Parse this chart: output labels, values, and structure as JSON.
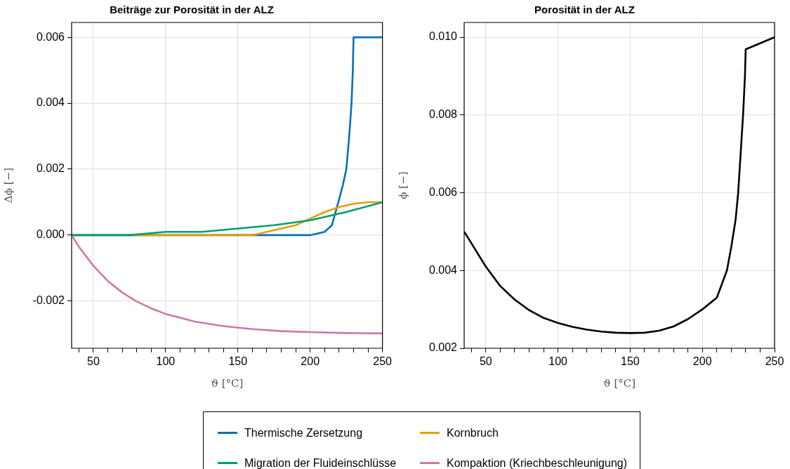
{
  "chart_data": [
    {
      "type": "line",
      "title": "Beiträge zur Porosität in der ALZ",
      "xlabel": "ϑ [°C]",
      "ylabel": "Δϕ [−]",
      "xlim": [
        35,
        250
      ],
      "xticks": [
        {
          "value": 40,
          "label": null
        },
        50,
        {
          "value": 60,
          "label": null
        },
        {
          "value": 70,
          "label": null
        },
        {
          "value": 80,
          "label": null
        },
        {
          "value": 90,
          "label": null
        },
        100,
        {
          "value": 110,
          "label": null
        },
        {
          "value": 120,
          "label": null
        },
        {
          "value": 130,
          "label": null
        },
        {
          "value": 140,
          "label": null
        },
        150,
        {
          "value": 160,
          "label": null
        },
        {
          "value": 170,
          "label": null
        },
        {
          "value": 180,
          "label": null
        },
        {
          "value": 190,
          "label": null
        },
        200,
        {
          "value": 210,
          "label": null
        },
        {
          "value": 220,
          "label": null
        },
        {
          "value": 230,
          "label": null
        },
        {
          "value": 240,
          "label": null
        },
        250
      ],
      "ylim": [
        -0.00343,
        0.00645
      ],
      "yticks": [
        {
          "value": -0.002,
          "label": "-0.002"
        },
        {
          "value": 0,
          "label": "0.000"
        },
        {
          "value": 0.002,
          "label": "0.002"
        },
        {
          "value": 0.004,
          "label": "0.004"
        },
        {
          "value": 0.006,
          "label": "0.006"
        }
      ],
      "grid": true,
      "legend": "bottom",
      "line_style": "solid",
      "marker": "none",
      "series": [
        {
          "name": "Thermische Zersetzung",
          "color": "#0072b2",
          "x": [
            35,
            100,
            150,
            200,
            210,
            215,
            219.5,
            222.5,
            225,
            227,
            228.6,
            229.5,
            230,
            250
          ],
          "values": [
            0,
            0,
            0,
            0,
            0.0001,
            0.0003,
            0.001,
            0.0015,
            0.002,
            0.003,
            0.004,
            0.005,
            0.006,
            0.006
          ]
        },
        {
          "name": "Kornbruch",
          "color": "#e69f00",
          "x": [
            35,
            100,
            150,
            160,
            170,
            180,
            190,
            200,
            210,
            220,
            230,
            240,
            250
          ],
          "values": [
            0,
            0,
            0,
            0,
            0.0001,
            0.0002,
            0.0003,
            0.0005,
            0.0007,
            0.00085,
            0.00095,
            0.001,
            0.001
          ]
        },
        {
          "name": "Migration der Fluideinschlüsse",
          "color": "#009e73",
          "x": [
            35,
            50,
            75,
            100,
            125,
            150,
            175,
            200,
            225,
            250
          ],
          "values": [
            0,
            0,
            0,
            0.0001,
            0.0001,
            0.0002,
            0.0003,
            0.00045,
            0.0007,
            0.001
          ]
        },
        {
          "name": "Kompaktion (Kriechbeschleunigung)",
          "color": "#cc79a7",
          "x": [
            35,
            40,
            50,
            60,
            70,
            80,
            90,
            100,
            120,
            140,
            160,
            180,
            200,
            225,
            250
          ],
          "values": [
            0,
            -0.00035,
            -0.00093,
            -0.00139,
            -0.00174,
            -0.00201,
            -0.00222,
            -0.00239,
            -0.00262,
            -0.00276,
            -0.00285,
            -0.00291,
            -0.00294,
            -0.00297,
            -0.00298
          ]
        }
      ]
    },
    {
      "type": "line",
      "title": "Porosität in der ALZ",
      "xlabel": "ϑ [°C]",
      "ylabel": "ϕ [−]",
      "xlim": [
        35,
        250
      ],
      "xticks": [
        {
          "value": 40,
          "label": null
        },
        50,
        {
          "value": 60,
          "label": null
        },
        {
          "value": 70,
          "label": null
        },
        {
          "value": 80,
          "label": null
        },
        {
          "value": 90,
          "label": null
        },
        100,
        {
          "value": 110,
          "label": null
        },
        {
          "value": 120,
          "label": null
        },
        {
          "value": 130,
          "label": null
        },
        {
          "value": 140,
          "label": null
        },
        150,
        {
          "value": 160,
          "label": null
        },
        {
          "value": 170,
          "label": null
        },
        {
          "value": 180,
          "label": null
        },
        {
          "value": 190,
          "label": null
        },
        200,
        {
          "value": 210,
          "label": null
        },
        {
          "value": 220,
          "label": null
        },
        {
          "value": 230,
          "label": null
        },
        {
          "value": 240,
          "label": null
        },
        250
      ],
      "ylim": [
        0.002,
        0.01038
      ],
      "yticks": [
        {
          "value": 0.002,
          "label": "0.002"
        },
        {
          "value": 0.004,
          "label": "0.004"
        },
        {
          "value": 0.006,
          "label": "0.006"
        },
        {
          "value": 0.008,
          "label": "0.008"
        },
        {
          "value": 0.01,
          "label": "0.010"
        }
      ],
      "grid": true,
      "line_style": "solid",
      "marker": "none",
      "series": [
        {
          "color": "#000000",
          "x": [
            35,
            50,
            60,
            70,
            80,
            90,
            100,
            110,
            120,
            130,
            140,
            150,
            160,
            170,
            180,
            190,
            200,
            210,
            217,
            220,
            223,
            224.8,
            226.5,
            228.2,
            229.5,
            230,
            250
          ],
          "values": [
            0.005,
            0.0041,
            0.0036,
            0.00325,
            0.00298,
            0.00278,
            0.00265,
            0.00255,
            0.00248,
            0.00243,
            0.0024,
            0.00239,
            0.0024,
            0.00245,
            0.00256,
            0.00275,
            0.003,
            0.0033,
            0.004,
            0.0046,
            0.0053,
            0.006,
            0.007,
            0.008,
            0.009,
            0.00969,
            0.01
          ]
        }
      ]
    }
  ]
}
